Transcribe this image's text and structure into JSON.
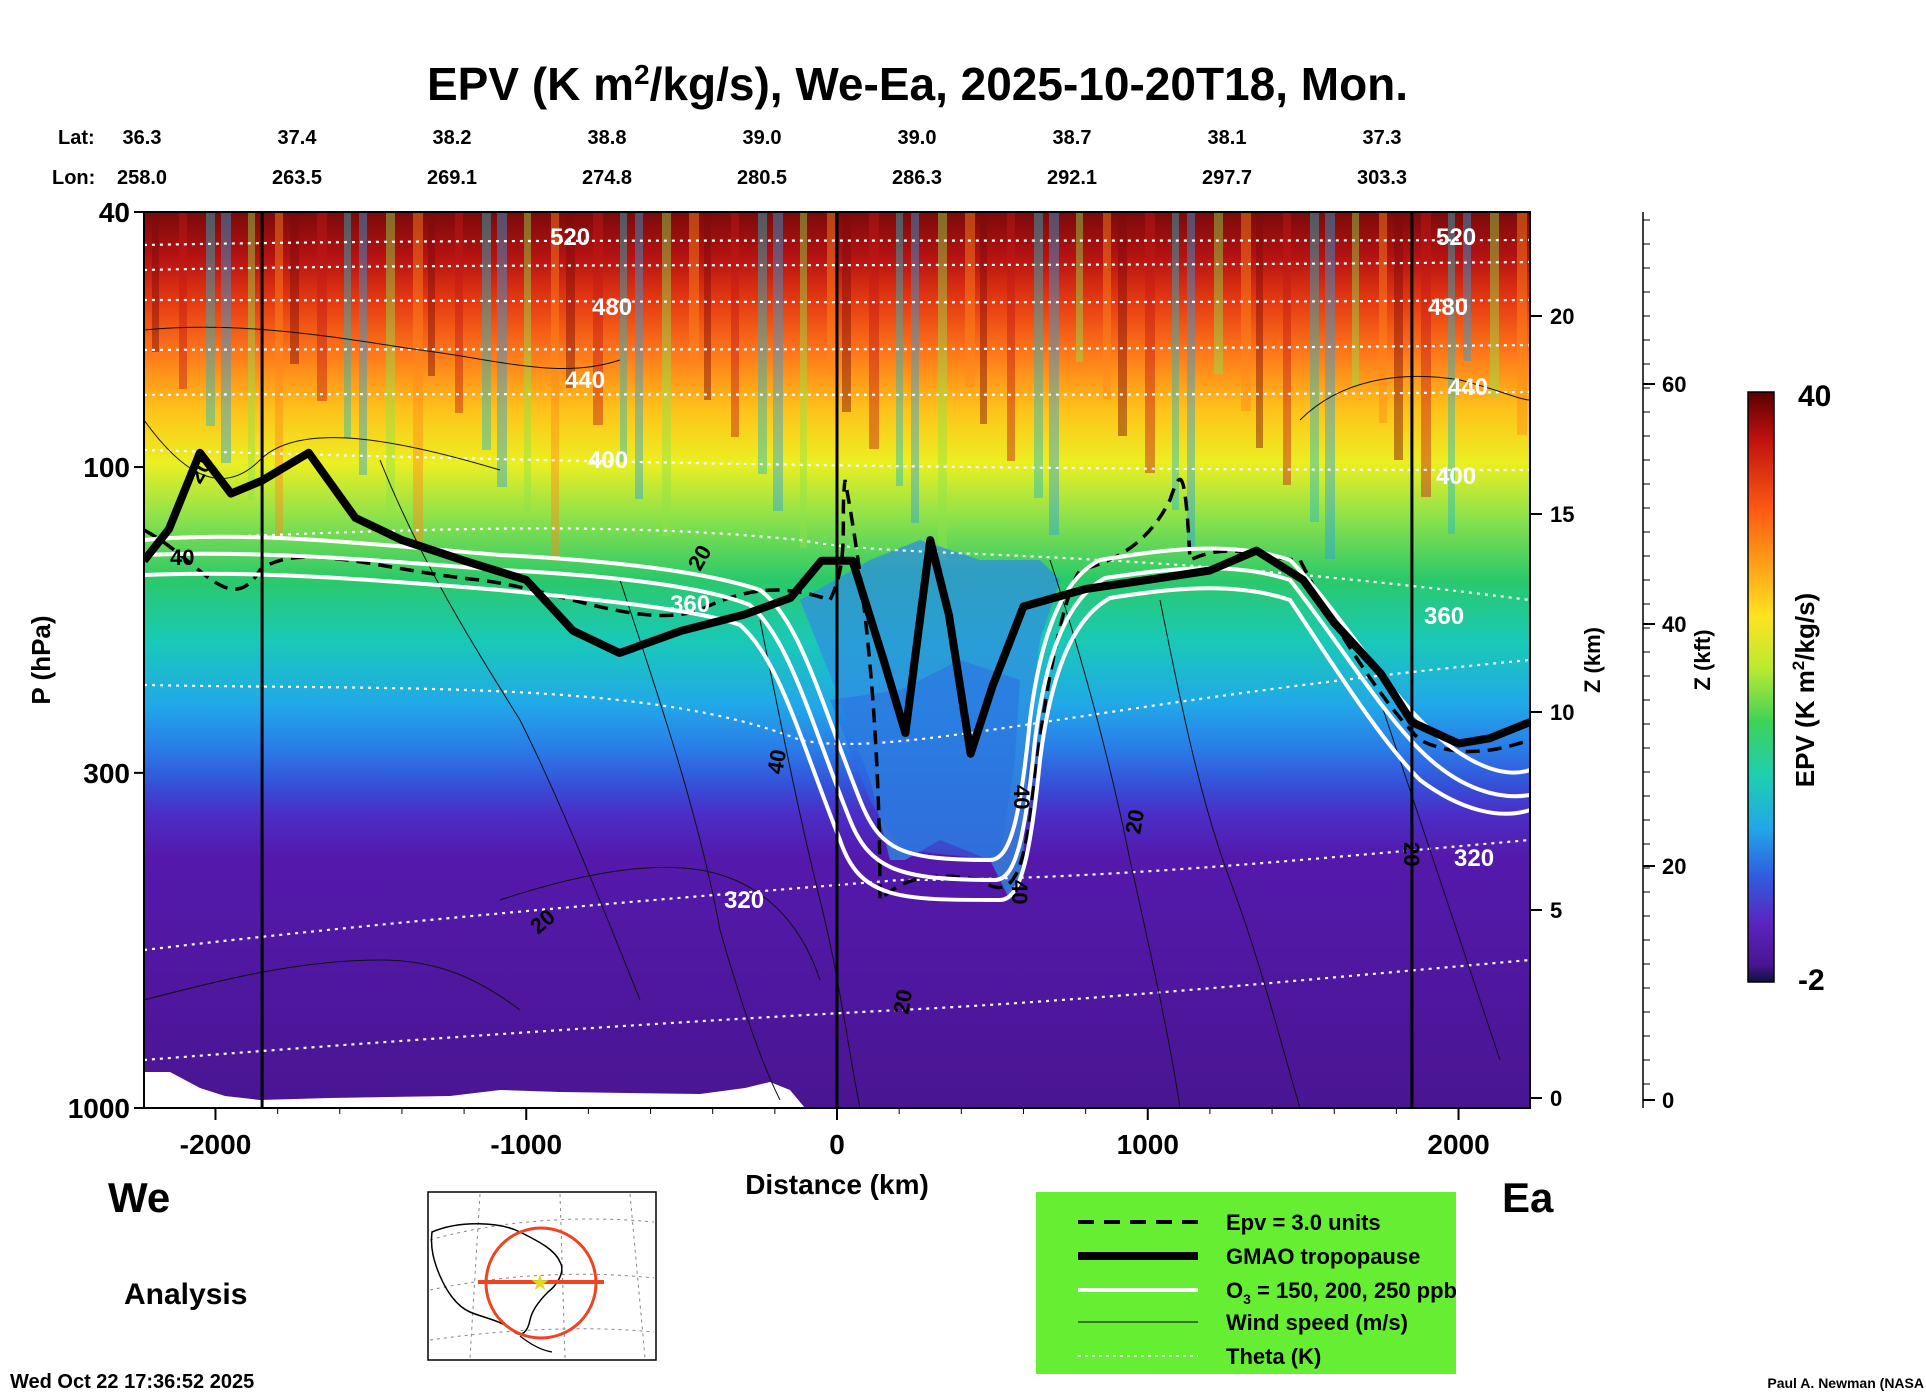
{
  "chart_data": {
    "type": "heatmap",
    "title": "EPV (K m²/kg/s), We-Ea, 2025-10-20T18, Mon.",
    "title_main": "EPV (K m",
    "title_sup": "2",
    "title_rest": "/kg/s), We-Ea, 2025-10-20T18, Mon.",
    "lat_label": "Lat:",
    "lon_label": "Lon:",
    "lats": [
      "36.3",
      "37.4",
      "38.2",
      "38.8",
      "39.0",
      "39.0",
      "38.7",
      "38.1",
      "37.3"
    ],
    "lons": [
      "258.0",
      "263.5",
      "269.1",
      "274.8",
      "280.5",
      "286.3",
      "292.1",
      "297.7",
      "303.3"
    ],
    "xlabel": "Distance (km)",
    "ylabel": "P (hPa)",
    "xlim": [
      -2230,
      2230
    ],
    "x_ticks": [
      -2000,
      -1000,
      0,
      1000,
      2000
    ],
    "x_tick_labels": [
      "-2000",
      "-1000",
      "0",
      "1000",
      "2000"
    ],
    "ylim_hPa": [
      1000,
      40
    ],
    "y_ticks": [
      1000,
      300,
      100,
      40
    ],
    "y_tick_labels": [
      "1000",
      "300",
      "100",
      "40"
    ],
    "z_km_label": "Z (km)",
    "z_km_ticks": [
      "0",
      "5",
      "10",
      "15",
      "20"
    ],
    "z_kft_label": "Z (kft)",
    "z_kft_ticks": [
      "0",
      "20",
      "40",
      "60"
    ],
    "colorbar_label": "EPV (K m²/kg/s)",
    "colorbar_label_main": "EPV (K m",
    "colorbar_label_sup": "2",
    "colorbar_label_rest": "/kg/s)",
    "colorbar_range": [
      -2,
      40
    ],
    "colorbar_max_label": "40",
    "colorbar_min_label": "-2",
    "vertical_markers_km": [
      -1850,
      0,
      1850
    ],
    "theta_labels": [
      "520",
      "480",
      "440",
      "400",
      "360",
      "320"
    ],
    "wind_labels": [
      "20",
      "40"
    ],
    "tropopause_km": [
      [
        -2230,
        140
      ],
      [
        -2150,
        125
      ],
      [
        -2050,
        95
      ],
      [
        -1950,
        110
      ],
      [
        -1850,
        105
      ],
      [
        -1700,
        95
      ],
      [
        -1550,
        120
      ],
      [
        -1400,
        130
      ],
      [
        -1200,
        140
      ],
      [
        -1000,
        150
      ],
      [
        -850,
        180
      ],
      [
        -700,
        195
      ],
      [
        -500,
        180
      ],
      [
        -300,
        170
      ],
      [
        -150,
        160
      ],
      [
        -50,
        140
      ],
      [
        50,
        140
      ],
      [
        150,
        200
      ],
      [
        220,
        260
      ],
      [
        300,
        130
      ],
      [
        360,
        170
      ],
      [
        430,
        280
      ],
      [
        500,
        220
      ],
      [
        600,
        165
      ],
      [
        800,
        155
      ],
      [
        1000,
        150
      ],
      [
        1200,
        145
      ],
      [
        1350,
        135
      ],
      [
        1500,
        150
      ],
      [
        1600,
        175
      ],
      [
        1750,
        210
      ],
      [
        1850,
        250
      ],
      [
        2000,
        270
      ],
      [
        2100,
        265
      ],
      [
        2230,
        250
      ]
    ],
    "legend": [
      {
        "style": "dashed",
        "label": "Epv = 3.0 units"
      },
      {
        "style": "thick",
        "label": "GMAO tropopause"
      },
      {
        "style": "white",
        "label": "O₃ = 150, 200, 250 ppb",
        "label_main": "O",
        "label_sub": "3",
        "label_rest": " = 150, 200, 250 ppb"
      },
      {
        "style": "thin",
        "label": "Wind speed (m/s)"
      },
      {
        "style": "dotted",
        "label": "Theta (K)"
      }
    ],
    "left_direction": "We",
    "right_direction": "Ea"
  },
  "analysis_label": "Analysis",
  "timestamp": "Wed Oct 22 17:36:52 2025",
  "credit": "Paul A. Newman (NASA",
  "colors": {
    "background": "#ffffff",
    "legend_bg": "#66ee33",
    "map_track": "#ee4422",
    "map_marker": "#dddd22"
  }
}
